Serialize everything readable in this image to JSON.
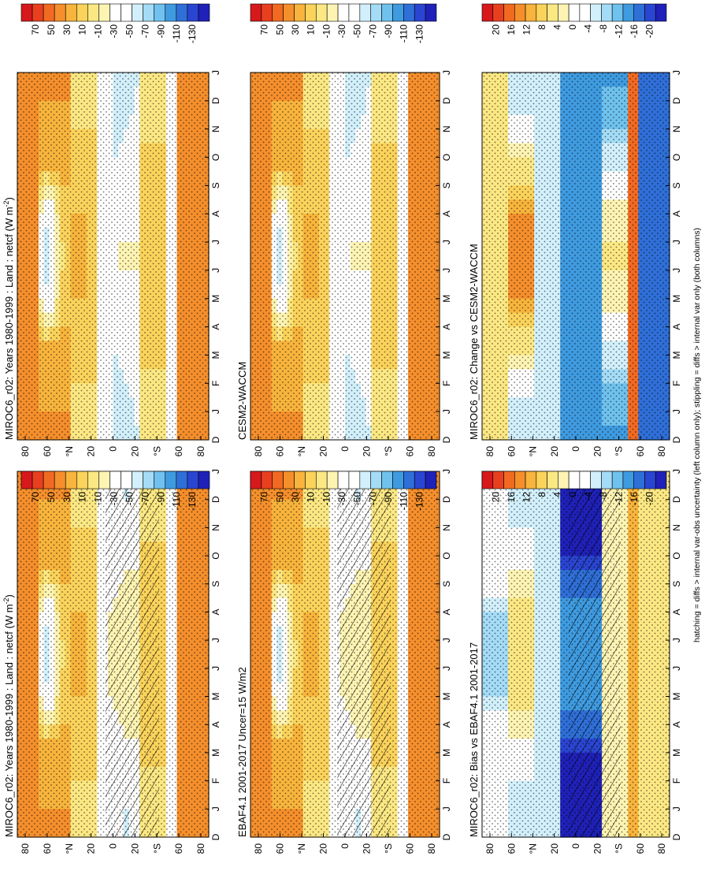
{
  "figure": {
    "footnote": "hatching = diffs > internal var-obs uncertainty (left column only); stippling = diffs > internal var only (both columns)"
  },
  "colors": {
    "abs_scale": [
      "#d7191c",
      "#e8401f",
      "#f26a22",
      "#f58f2c",
      "#f8b43c",
      "#fbd35b",
      "#fce883",
      "#fdf4b3",
      "#ffffff",
      "#ffffff",
      "#d2f0fb",
      "#a4dcf7",
      "#6fc2ee",
      "#3f9be0",
      "#2f6fd8",
      "#2a45d2",
      "#1f21b8"
    ],
    "diff_scale": [
      "#d7191c",
      "#e8401f",
      "#f26a22",
      "#f58f2c",
      "#f8b43c",
      "#fbd35b",
      "#fce883",
      "#fdf4b3",
      "#ffffff",
      "#ffffff",
      "#d2f0fb",
      "#a4dcf7",
      "#6fc2ee",
      "#3f9be0",
      "#2f6fd8",
      "#2a45d2",
      "#1f21b8"
    ]
  },
  "chart_data": [
    {
      "type": "heatmap",
      "panel": "top-left",
      "title": "MIROC6_r02: Years 1980-1999 : Land : netcf (W m",
      "title_sup": "-2",
      "title_end": ")",
      "xlabel": "",
      "ylabel": "",
      "months": [
        "D",
        "J",
        "F",
        "M",
        "A",
        "M",
        "J",
        "J",
        "A",
        "S",
        "O",
        "N",
        "D",
        "J"
      ],
      "lat_ticks": [
        "80",
        "60",
        "°N",
        "20",
        "0",
        "20",
        "°S",
        "60",
        "80"
      ],
      "ylim": [
        -90,
        90
      ],
      "colorbar_ticks": [
        "70",
        "50",
        "30",
        "10",
        "-10",
        "-30",
        "-50",
        "-70",
        "-90",
        "-110",
        "-130"
      ],
      "features": "positive (warm) over both polar regions, negative lobe 50-70N in JJA, negative band in tropics/southern midlatitudes",
      "hatching": true,
      "stippling": true
    },
    {
      "type": "heatmap",
      "panel": "top-right",
      "title": "MIROC6_r02: Years 1980-1999 : Land : netcf (W m",
      "title_sup": "-2",
      "title_end": ")",
      "xlabel": "",
      "ylabel": "",
      "months": [
        "D",
        "J",
        "F",
        "M",
        "A",
        "M",
        "J",
        "J",
        "A",
        "S",
        "O",
        "N",
        "D",
        "J"
      ],
      "lat_ticks": [
        "80",
        "60",
        "°N",
        "20",
        "0",
        "20",
        "°S",
        "60",
        "80"
      ],
      "ylim": [
        -90,
        90
      ],
      "colorbar_ticks": [
        "70",
        "50",
        "30",
        "10",
        "-10",
        "-30",
        "-50",
        "-70",
        "-90",
        "-110",
        "-130"
      ],
      "hatching": false,
      "stippling": true
    },
    {
      "type": "heatmap",
      "panel": "middle-left",
      "title": "EBAF4.1 2001-2017 Uncer=15 W/m2",
      "xlabel": "",
      "ylabel": "",
      "months": [
        "D",
        "J",
        "F",
        "M",
        "A",
        "M",
        "J",
        "J",
        "A",
        "S",
        "O",
        "N",
        "D",
        "J"
      ],
      "lat_ticks": [
        "80",
        "60",
        "°N",
        "20",
        "0",
        "20",
        "°S",
        "60",
        "80"
      ],
      "ylim": [
        -90,
        90
      ],
      "colorbar_ticks": [
        "70",
        "50",
        "30",
        "10",
        "-10",
        "-30",
        "-50",
        "-70",
        "-90",
        "-110",
        "-130"
      ],
      "hatching": true,
      "stippling": true
    },
    {
      "type": "heatmap",
      "panel": "middle-right",
      "title": "CESM2-WACCM",
      "xlabel": "",
      "ylabel": "",
      "months": [
        "D",
        "J",
        "F",
        "M",
        "A",
        "M",
        "J",
        "J",
        "A",
        "S",
        "O",
        "N",
        "D",
        "J"
      ],
      "lat_ticks": [
        "80",
        "60",
        "°N",
        "20",
        "0",
        "20",
        "°S",
        "60",
        "80"
      ],
      "ylim": [
        -90,
        90
      ],
      "colorbar_ticks": [
        "70",
        "50",
        "30",
        "10",
        "-10",
        "-30",
        "-50",
        "-70",
        "-90",
        "-110",
        "-130"
      ],
      "hatching": false,
      "stippling": true
    },
    {
      "type": "heatmap",
      "panel": "bottom-left",
      "title": "MIROC6_r02: Bias vs EBAF4.1 2001-2017",
      "xlabel": "",
      "ylabel": "",
      "months": [
        "D",
        "J",
        "F",
        "M",
        "A",
        "M",
        "J",
        "J",
        "A",
        "S",
        "O",
        "N",
        "D",
        "J"
      ],
      "lat_ticks": [
        "80",
        "60",
        "°N",
        "20",
        "0",
        "20",
        "°S",
        "60",
        "80"
      ],
      "ylim": [
        -90,
        90
      ],
      "colorbar_ticks": [
        "20",
        "16",
        "12",
        "8",
        "4",
        "0",
        "-4",
        "-8",
        "-12",
        "-16",
        "-20"
      ],
      "hatching": true,
      "stippling": true
    },
    {
      "type": "heatmap",
      "panel": "bottom-right",
      "title": "MIROC6_r02: Change vs CESM2-WACCM",
      "xlabel": "",
      "ylabel": "",
      "months": [
        "D",
        "J",
        "F",
        "M",
        "A",
        "M",
        "J",
        "J",
        "A",
        "S",
        "O",
        "N",
        "D",
        "J"
      ],
      "lat_ticks": [
        "80",
        "60",
        "°N",
        "20",
        "0",
        "20",
        "°S",
        "60",
        "80"
      ],
      "ylim": [
        -90,
        90
      ],
      "colorbar_ticks": [
        "20",
        "16",
        "12",
        "8",
        "4",
        "0",
        "-4",
        "-8",
        "-12",
        "-16",
        "-20"
      ],
      "hatching": false,
      "stippling": true
    }
  ]
}
